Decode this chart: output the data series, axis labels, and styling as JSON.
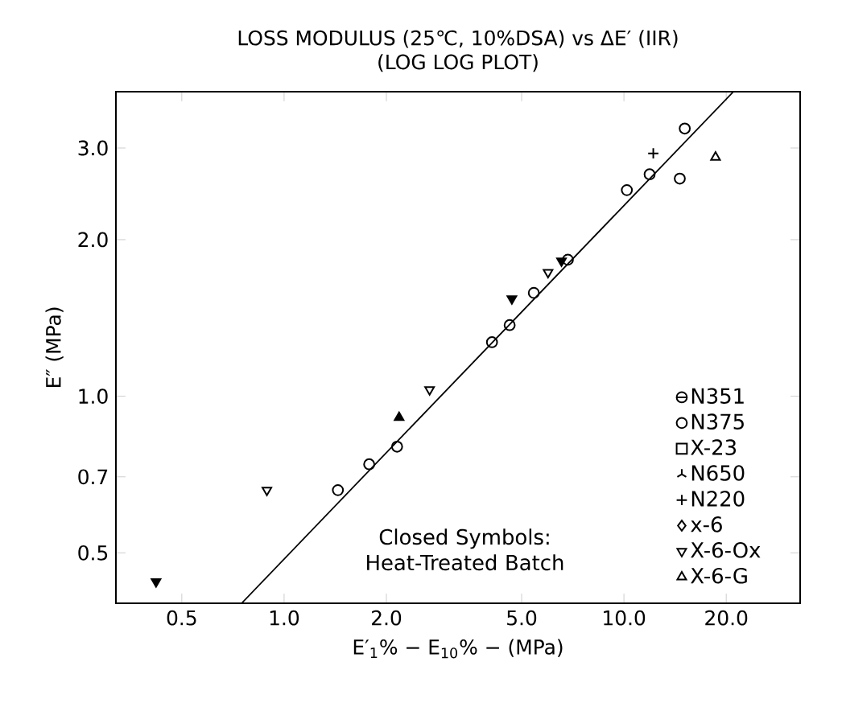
{
  "chart_data": {
    "type": "scatter",
    "title": "LOSS MODULUS (25℃, 10%DSA) vs ΔE′ (IIR)",
    "subtitle": "(LOG LOG PLOT)",
    "xlabel": "E′$_{1}$% − E$_{10}$% − (MPa)",
    "ylabel": "E″ (MPa)",
    "log": "xy",
    "grid": false,
    "legend": "bottom right",
    "xlim": [
      0.32,
      33
    ],
    "ylim": [
      0.4,
      3.85
    ],
    "xticks": [
      0.5,
      {
        "value": 1,
        "label": "1.0"
      },
      {
        "value": 2,
        "label": "2.0"
      },
      {
        "value": 5,
        "label": "5.0"
      },
      {
        "value": 10,
        "label": "10.0"
      },
      {
        "value": 20,
        "label": "20.0"
      }
    ],
    "yticks": [
      0.5,
      0.7,
      {
        "value": 1,
        "label": "1.0"
      },
      {
        "value": 2,
        "label": "2.0"
      },
      {
        "value": 3,
        "label": "3.0"
      }
    ],
    "annotations": [
      "Closed Symbols: Heat-Treated Batch"
    ],
    "series": [
      {
        "name": "N351",
        "color": "#000000",
        "marker": "halfcircle"
      },
      {
        "name": "N375",
        "color": "#000000",
        "marker": "circle",
        "x": [
          1.44,
          1.78,
          2.15,
          4.09,
          4.61,
          5.43,
          6.84,
          10.2,
          11.9,
          14.6,
          15.1
        ],
        "values": [
          0.66,
          0.74,
          0.8,
          1.27,
          1.37,
          1.58,
          1.83,
          2.49,
          2.67,
          2.62,
          3.27
        ]
      },
      {
        "name": "X-23",
        "color": "#000000",
        "marker": "square"
      },
      {
        "name": "N650",
        "color": "#000000",
        "marker": "star"
      },
      {
        "name": "N220",
        "color": "#000000",
        "marker": "cross",
        "x": [
          12.2
        ],
        "values": [
          2.93
        ]
      },
      {
        "name": "x-6",
        "color": "#000000",
        "marker": "diamond"
      },
      {
        "name": "X-6-Ox",
        "color": "#000000",
        "marker": "triangle_down",
        "x": [
          0.89,
          2.68,
          5.98
        ],
        "values": [
          0.66,
          1.03,
          1.73
        ]
      },
      {
        "name": "X-6-G",
        "color": "#000000",
        "marker": "triangle",
        "x": [
          18.6
        ],
        "values": [
          2.88
        ]
      },
      {
        "color": "#000000",
        "marker": "triangle_down_filled",
        "x": [
          0.42,
          4.68,
          6.55
        ],
        "values": [
          0.44,
          1.54,
          1.82
        ]
      },
      {
        "color": "#000000",
        "marker": "triangle_filled",
        "x": [
          2.18
        ],
        "values": [
          0.91
        ]
      },
      {
        "type": "line",
        "color": "#000000",
        "marker": "none",
        "x": [
          0.75,
          21
        ],
        "values": [
          0.4,
          3.85
        ]
      }
    ]
  }
}
